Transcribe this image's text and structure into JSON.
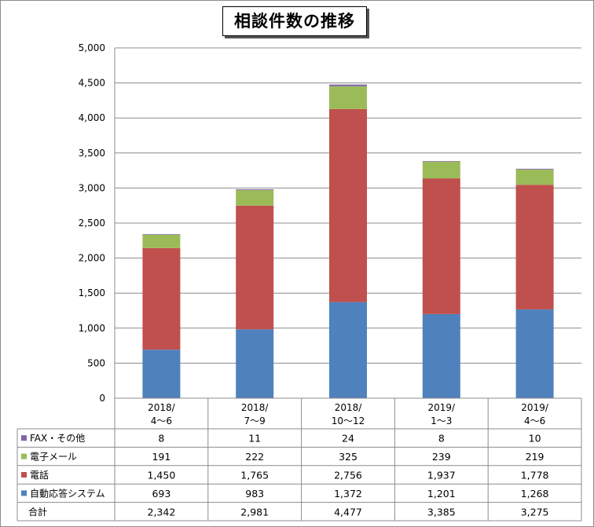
{
  "chart_data": {
    "type": "bar",
    "stacked": true,
    "title": "相談件数の推移",
    "categories": [
      [
        "2018/",
        "4〜6"
      ],
      [
        "2018/",
        "7〜9"
      ],
      [
        "2018/",
        "10〜12"
      ],
      [
        "2019/",
        "1〜3"
      ],
      [
        "2019/",
        "4〜6"
      ]
    ],
    "ylim": [
      0,
      5000
    ],
    "yticks": [
      "0",
      "500",
      "1,000",
      "1,500",
      "2,000",
      "2,500",
      "3,000",
      "3,500",
      "4,000",
      "4,500",
      "5,000"
    ],
    "grid": true,
    "series": [
      {
        "name": "自動応答システム",
        "color": "#4f81bd",
        "values": [
          693,
          983,
          1372,
          1201,
          1268
        ],
        "labels": [
          "693",
          "983",
          "1,372",
          "1,201",
          "1,268"
        ]
      },
      {
        "name": "電話",
        "color": "#c0504d",
        "values": [
          1450,
          1765,
          2756,
          1937,
          1778
        ],
        "labels": [
          "1,450",
          "1,765",
          "2,756",
          "1,937",
          "1,778"
        ]
      },
      {
        "name": "電子メール",
        "color": "#9bbb59",
        "values": [
          191,
          222,
          325,
          239,
          219
        ],
        "labels": [
          "191",
          "222",
          "325",
          "239",
          "219"
        ]
      },
      {
        "name": "FAX・その他",
        "color": "#8064a2",
        "values": [
          8,
          11,
          24,
          8,
          10
        ],
        "labels": [
          "8",
          "11",
          "24",
          "8",
          "10"
        ]
      }
    ],
    "total": {
      "name": "合計",
      "values": [
        2342,
        2981,
        4477,
        3385,
        3275
      ],
      "labels": [
        "2,342",
        "2,981",
        "4,477",
        "3,385",
        "3,275"
      ]
    },
    "table_row_order": [
      "FAX・その他",
      "電子メール",
      "電話",
      "自動応答システム",
      "合計"
    ]
  }
}
